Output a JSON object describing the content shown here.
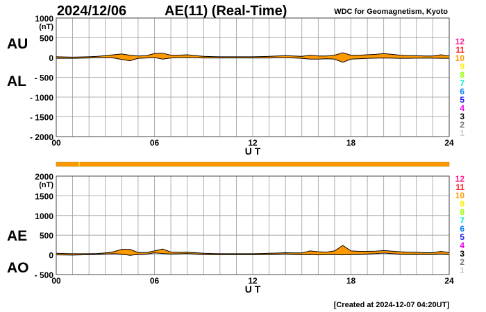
{
  "header": {
    "date": "2024/12/06",
    "title": "AE(11) (Real-Time)",
    "source": "WDC for Geomagnetism, Kyoto"
  },
  "footer": {
    "created": "[Created at 2024-12-07 04:20UT]"
  },
  "legend": {
    "items": [
      {
        "label": "12",
        "color": "#ff1a8c"
      },
      {
        "label": "11",
        "color": "#ff2a2a"
      },
      {
        "label": "10",
        "color": "#ff9900"
      },
      {
        "label": "9",
        "color": "#ffee00"
      },
      {
        "label": "8",
        "color": "#99ff00"
      },
      {
        "label": "7",
        "color": "#00eecc"
      },
      {
        "label": "6",
        "color": "#0080ff"
      },
      {
        "label": "5",
        "color": "#2020ee"
      },
      {
        "label": "4",
        "color": "#ee00ee"
      },
      {
        "label": "3",
        "color": "#000000"
      },
      {
        "label": "2",
        "color": "#777777"
      },
      {
        "label": "1",
        "color": "#cccccc"
      }
    ]
  },
  "colors": {
    "fill": "#ff9900",
    "line": "#000000",
    "grid": "#999999",
    "marker": "#ffff66"
  },
  "chart_data": [
    {
      "type": "area",
      "name": "AU/AL",
      "labels": {
        "upper": "AU",
        "lower": "AL"
      },
      "unit": "(nT)",
      "xlabel": "U T",
      "ylim": [
        -2000,
        1000
      ],
      "yticks": [
        {
          "value": 1000,
          "label": "1000"
        },
        {
          "value": 500,
          "label": "500"
        },
        {
          "value": 0,
          "label": "0"
        },
        {
          "value": -500,
          "label": "- 500"
        },
        {
          "value": -1000,
          "label": "- 1000"
        },
        {
          "value": -1500,
          "label": "- 1500"
        },
        {
          "value": -2000,
          "label": "- 2000"
        }
      ],
      "xlim": [
        0,
        24
      ],
      "xticks": [
        {
          "value": 0,
          "label": "00"
        },
        {
          "value": 6,
          "label": "06"
        },
        {
          "value": 12,
          "label": "12"
        },
        {
          "value": 18,
          "label": "18"
        },
        {
          "value": 24,
          "label": "24"
        }
      ],
      "grid": true,
      "x_step_hours": 0.5,
      "series": [
        {
          "name": "AU",
          "values": [
            20,
            15,
            10,
            15,
            20,
            30,
            50,
            70,
            90,
            60,
            40,
            50,
            100,
            110,
            60,
            60,
            70,
            50,
            30,
            25,
            20,
            20,
            20,
            20,
            20,
            25,
            30,
            40,
            50,
            40,
            30,
            60,
            40,
            40,
            60,
            120,
            60,
            60,
            70,
            80,
            100,
            80,
            60,
            50,
            50,
            40,
            40,
            70,
            40
          ]
        },
        {
          "name": "AL",
          "values": [
            -20,
            -20,
            -20,
            -15,
            -10,
            -5,
            0,
            -10,
            -50,
            -80,
            -20,
            -10,
            0,
            -40,
            -10,
            -5,
            0,
            -5,
            -10,
            -10,
            -10,
            -10,
            -10,
            -10,
            -10,
            -10,
            -10,
            -5,
            -5,
            -10,
            -20,
            -40,
            -40,
            -30,
            -40,
            -120,
            -40,
            -30,
            -20,
            -15,
            -10,
            -15,
            -20,
            -20,
            -15,
            -15,
            -15,
            -20,
            -20
          ]
        }
      ]
    },
    {
      "type": "area",
      "name": "AE/AO",
      "labels": {
        "upper": "AE",
        "lower": "AO"
      },
      "unit": "(nT)",
      "xlabel": "U T",
      "ylim": [
        -500,
        2000
      ],
      "yticks": [
        {
          "value": 2000,
          "label": "2000"
        },
        {
          "value": 1500,
          "label": "1500"
        },
        {
          "value": 1000,
          "label": "1000"
        },
        {
          "value": 500,
          "label": "500"
        },
        {
          "value": 0,
          "label": "0"
        },
        {
          "value": -500,
          "label": "- 500"
        }
      ],
      "xlim": [
        0,
        24
      ],
      "xticks": [
        {
          "value": 0,
          "label": "00"
        },
        {
          "value": 6,
          "label": "06"
        },
        {
          "value": 12,
          "label": "12"
        },
        {
          "value": 18,
          "label": "18"
        },
        {
          "value": 24,
          "label": "24"
        }
      ],
      "grid": true,
      "x_step_hours": 0.5,
      "series": [
        {
          "name": "AE",
          "values": [
            40,
            35,
            30,
            30,
            30,
            35,
            50,
            80,
            140,
            140,
            60,
            60,
            100,
            150,
            70,
            65,
            70,
            55,
            40,
            35,
            30,
            30,
            30,
            30,
            30,
            35,
            40,
            45,
            55,
            50,
            50,
            100,
            80,
            70,
            100,
            240,
            100,
            90,
            90,
            95,
            110,
            95,
            80,
            70,
            65,
            55,
            55,
            90,
            60
          ]
        },
        {
          "name": "AO",
          "values": [
            0,
            -2.5,
            -5,
            0,
            5,
            12.5,
            25,
            30,
            20,
            -10,
            10,
            20,
            50,
            35,
            25,
            27.5,
            35,
            22.5,
            10,
            7.5,
            5,
            5,
            5,
            5,
            5,
            7.5,
            10,
            17.5,
            22.5,
            15,
            5,
            10,
            0,
            5,
            10,
            0,
            10,
            15,
            25,
            32.5,
            45,
            32.5,
            20,
            15,
            17.5,
            12.5,
            12.5,
            25,
            10
          ]
        }
      ]
    }
  ],
  "status_bar": {
    "level": "10",
    "marker_hour": 1.4
  }
}
